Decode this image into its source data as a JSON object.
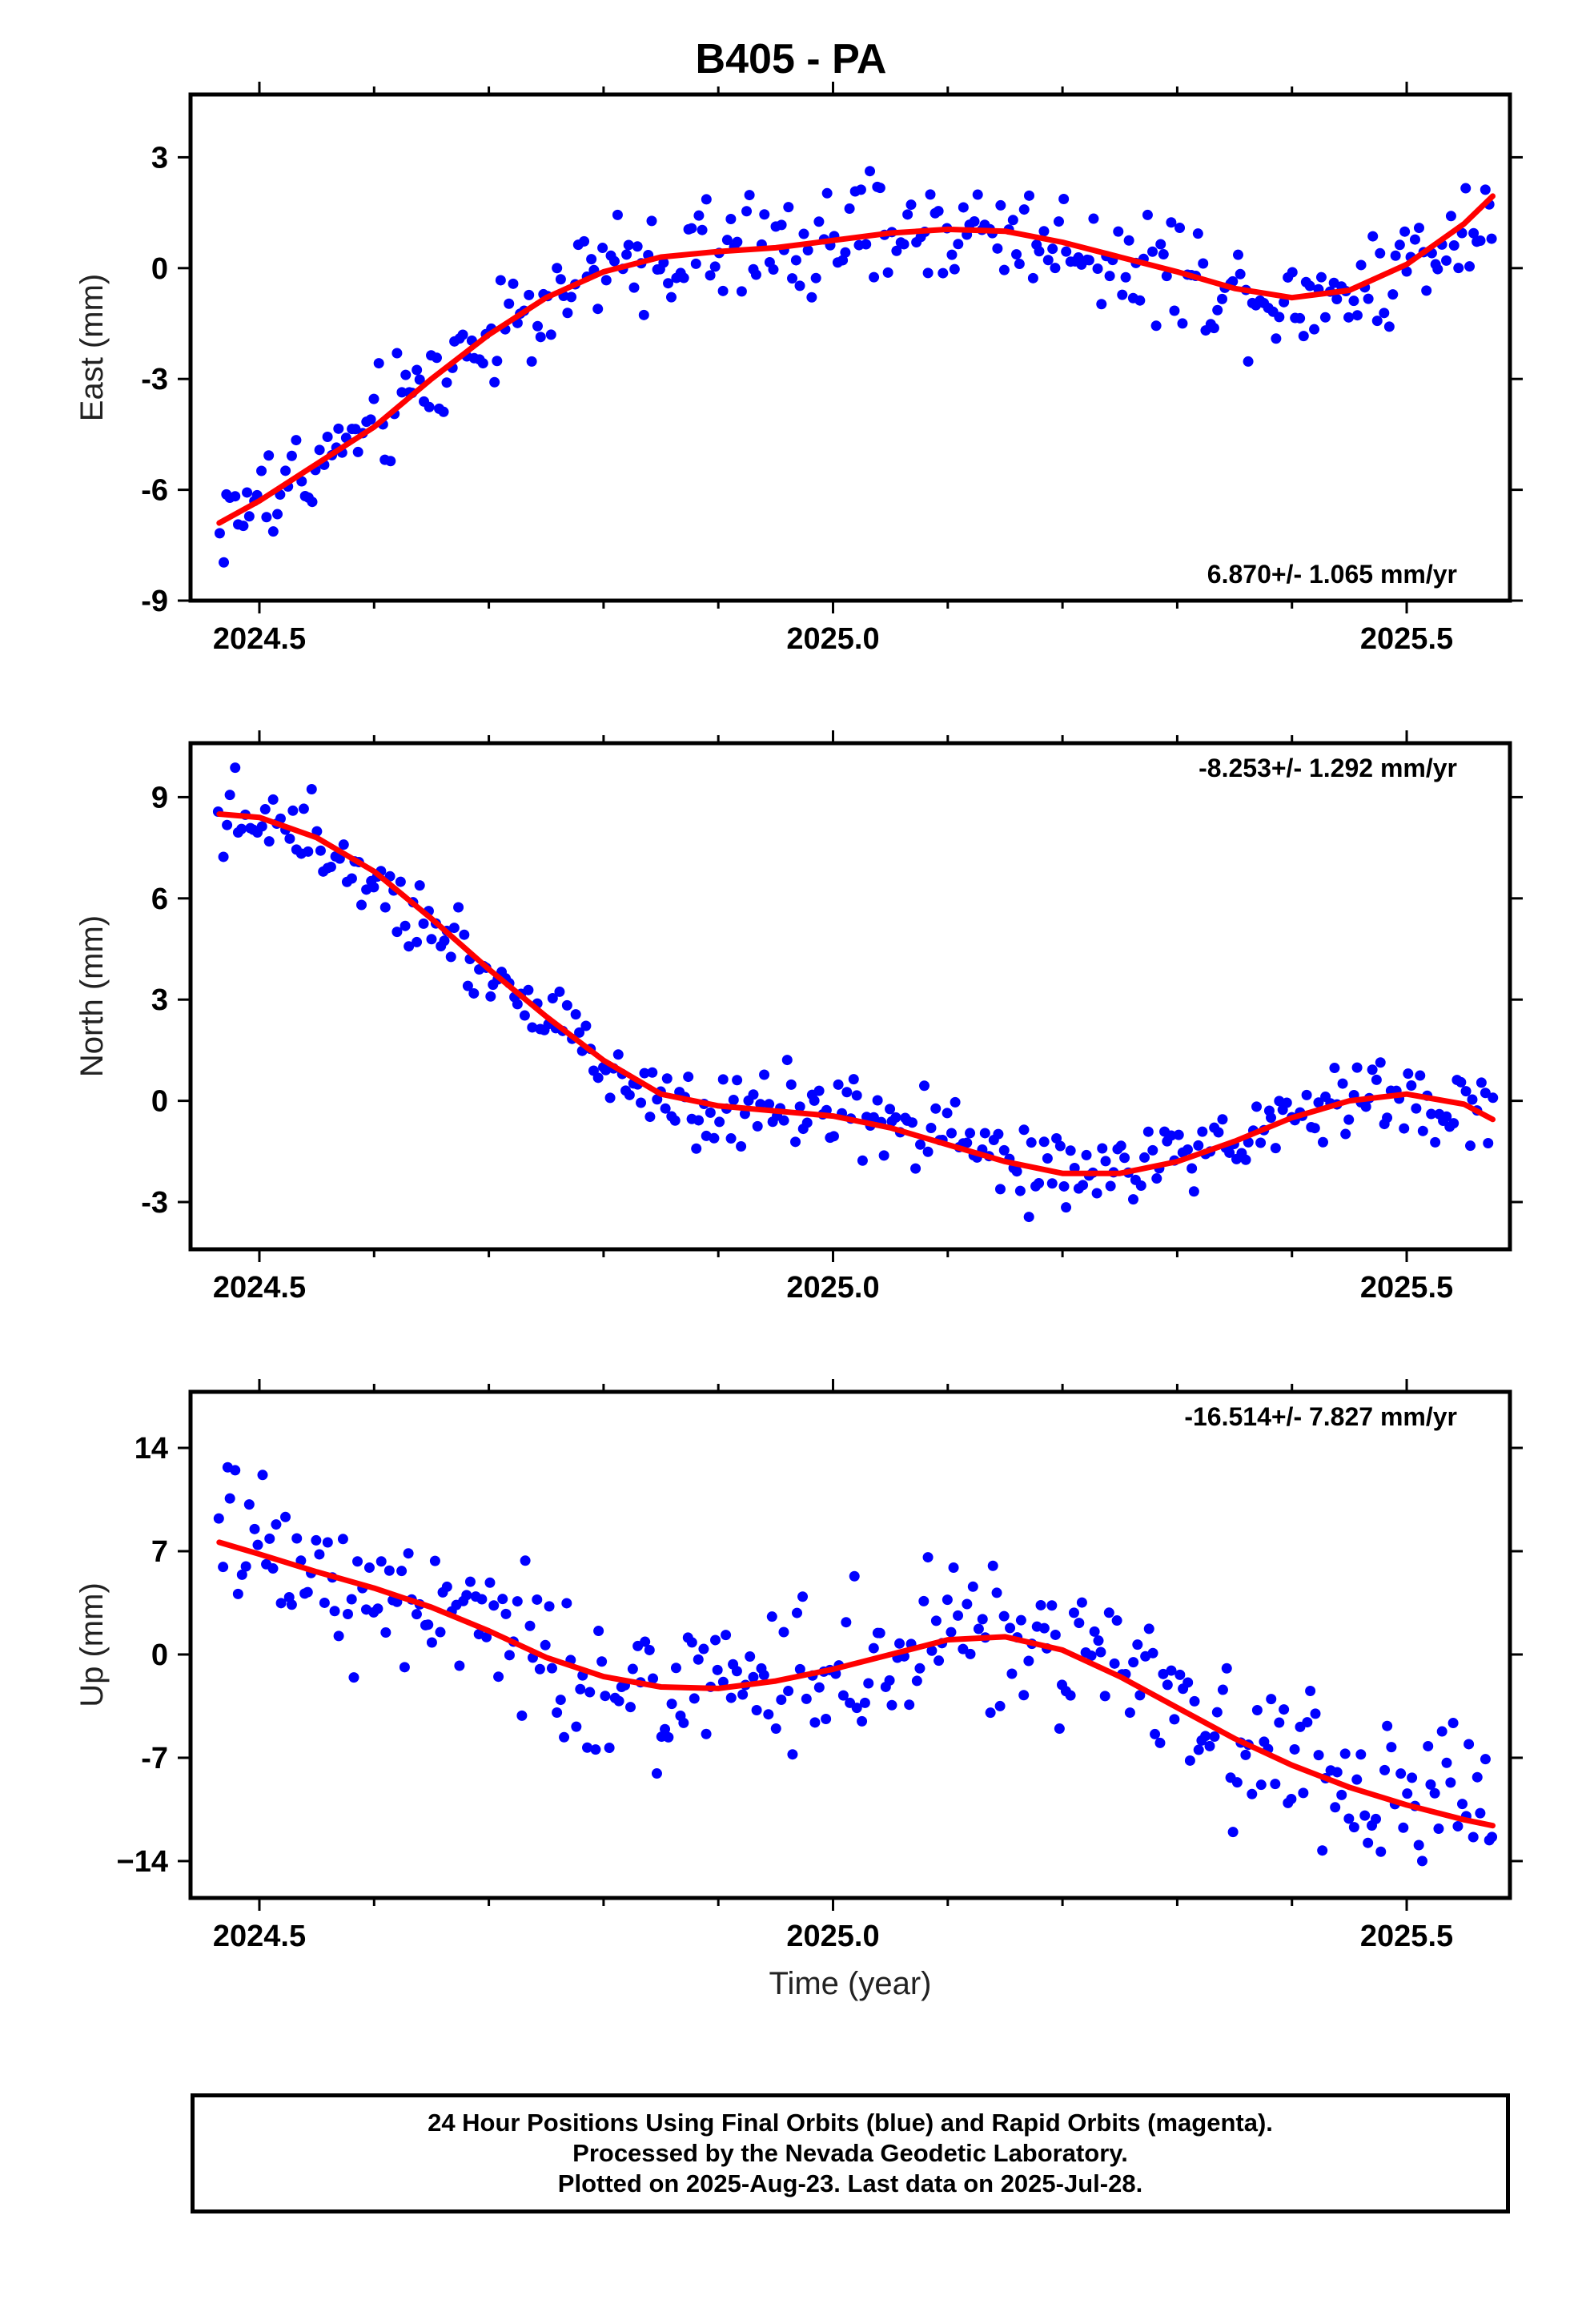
{
  "title": "B405 - PA",
  "xlabel": "Time (year)",
  "footer": {
    "line1": "24 Hour Positions Using Final Orbits (blue) and Rapid Orbits (magenta).",
    "line2": "Processed by the Nevada Geodetic Laboratory.",
    "line3": "Plotted on 2025-Aug-23. Last data on 2025-Jul-28."
  },
  "colors": {
    "points": "#0000ff",
    "fit": "#ff0000",
    "frame": "#000000"
  },
  "chart_data": [
    {
      "type": "scatter",
      "ylabel": "East (mm)",
      "rate_label": "6.870+/- 1.065 mm/yr",
      "rate_position": "bottom-right",
      "xlim": [
        2024.44,
        2025.59
      ],
      "ylim": [
        -9.0,
        4.7
      ],
      "xticks": [
        2024.5,
        2025.0,
        2025.5
      ],
      "xtick_labels": [
        "2024.5",
        "2025.0",
        "2025.5"
      ],
      "yticks": [
        -9,
        -6,
        -3,
        0,
        3
      ],
      "ytick_labels": [
        "-9",
        "-6",
        "-3",
        "0",
        "3"
      ],
      "fit_curve": {
        "name": "fit",
        "x": [
          2024.465,
          2024.5,
          2024.55,
          2024.6,
          2024.65,
          2024.7,
          2024.75,
          2024.8,
          2024.85,
          2024.9,
          2024.95,
          2025.0,
          2025.05,
          2025.1,
          2025.15,
          2025.2,
          2025.25,
          2025.3,
          2025.35,
          2025.4,
          2025.45,
          2025.5,
          2025.55,
          2025.575
        ],
        "y": [
          -6.9,
          -6.3,
          -5.3,
          -4.3,
          -3.0,
          -1.8,
          -0.8,
          -0.1,
          0.3,
          0.45,
          0.55,
          0.75,
          0.95,
          1.05,
          1.0,
          0.7,
          0.3,
          -0.1,
          -0.55,
          -0.8,
          -0.6,
          0.1,
          1.2,
          1.95
        ]
      }
    },
    {
      "type": "scatter",
      "ylabel": "North (mm)",
      "rate_label": "-8.253+/- 1.292 mm/yr",
      "rate_position": "top-right",
      "xlim": [
        2024.44,
        2025.59
      ],
      "ylim": [
        -4.4,
        10.6
      ],
      "xticks": [
        2024.5,
        2025.0,
        2025.5
      ],
      "xtick_labels": [
        "2024.5",
        "2025.0",
        "2025.5"
      ],
      "yticks": [
        -3,
        0,
        3,
        6,
        9
      ],
      "ytick_labels": [
        "-3",
        "0",
        "3",
        "6",
        "9"
      ],
      "fit_curve": {
        "name": "fit",
        "x": [
          2024.465,
          2024.5,
          2024.55,
          2024.6,
          2024.65,
          2024.7,
          2024.75,
          2024.8,
          2024.85,
          2024.9,
          2024.95,
          2025.0,
          2025.05,
          2025.1,
          2025.15,
          2025.2,
          2025.25,
          2025.3,
          2025.35,
          2025.4,
          2025.45,
          2025.5,
          2025.55,
          2025.575
        ],
        "y": [
          8.5,
          8.4,
          7.8,
          6.8,
          5.4,
          3.9,
          2.5,
          1.2,
          0.2,
          -0.15,
          -0.3,
          -0.45,
          -0.8,
          -1.3,
          -1.8,
          -2.15,
          -2.15,
          -1.8,
          -1.2,
          -0.5,
          0.0,
          0.2,
          -0.1,
          -0.55
        ]
      }
    },
    {
      "type": "scatter",
      "ylabel": "Up (mm)",
      "rate_label": "-16.514+/- 7.827 mm/yr",
      "rate_position": "top-right",
      "xlim": [
        2024.44,
        2025.59
      ],
      "ylim": [
        -16.5,
        17.8
      ],
      "xticks": [
        2024.5,
        2025.0,
        2025.5
      ],
      "xtick_labels": [
        "2024.5",
        "2025.0",
        "2025.5"
      ],
      "yticks": [
        -14,
        -7,
        0,
        7,
        14
      ],
      "ytick_labels": [
        "−14",
        "-7",
        "0",
        "7",
        "14"
      ],
      "fit_curve": {
        "name": "fit",
        "x": [
          2024.465,
          2024.5,
          2024.55,
          2024.6,
          2024.65,
          2024.7,
          2024.75,
          2024.8,
          2024.85,
          2024.9,
          2024.95,
          2025.0,
          2025.05,
          2025.1,
          2025.15,
          2025.2,
          2025.25,
          2025.3,
          2025.35,
          2025.4,
          2025.45,
          2025.5,
          2025.55,
          2025.575
        ],
        "y": [
          7.6,
          6.8,
          5.6,
          4.5,
          3.2,
          1.6,
          -0.2,
          -1.5,
          -2.2,
          -2.3,
          -1.8,
          -1.0,
          0.0,
          1.0,
          1.2,
          0.3,
          -1.5,
          -3.6,
          -5.7,
          -7.5,
          -9.0,
          -10.2,
          -11.2,
          -11.6
        ]
      }
    }
  ]
}
